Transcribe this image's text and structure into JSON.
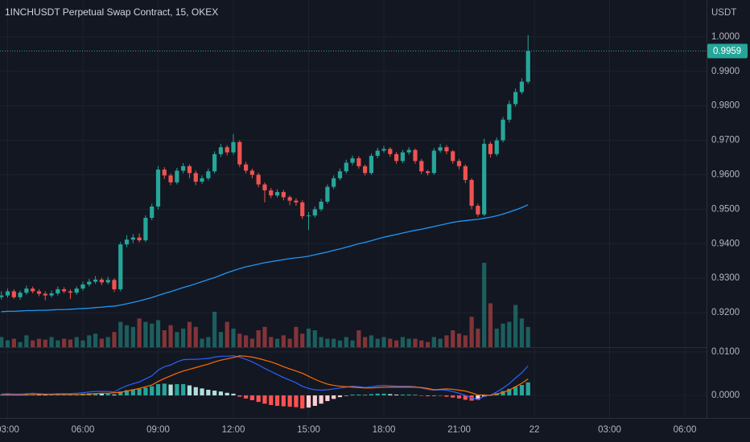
{
  "chart_data": {
    "type": "candlestick",
    "title": "1INCHUSDT Perpetual Swap Contract, 15, OKEX",
    "currency": "USDT",
    "grid": true,
    "up_color": "#26a69a",
    "down_color": "#ef5350",
    "xlim": [
      2.695,
      30.866
    ],
    "xticks": [
      {
        "value": 3,
        "label": "03:00"
      },
      {
        "value": 6,
        "label": "06:00"
      },
      {
        "value": 9,
        "label": "09:00"
      },
      {
        "value": 12,
        "label": "12:00"
      },
      {
        "value": 15,
        "label": "15:00"
      },
      {
        "value": 18,
        "label": "18:00"
      },
      {
        "value": 21,
        "label": "21:00"
      },
      {
        "value": 24,
        "label": "22"
      },
      {
        "value": 27,
        "label": "03:00"
      },
      {
        "value": 30,
        "label": "06:00"
      }
    ],
    "ylim": [
      0.91,
      1.0107
    ],
    "yticks": [
      {
        "value": 1,
        "label": "1.0000"
      },
      {
        "value": 0.99,
        "label": "0.9900"
      },
      {
        "value": 0.98,
        "label": "0.9800"
      },
      {
        "value": 0.97,
        "label": "0.9700"
      },
      {
        "value": 0.96,
        "label": "0.9600"
      },
      {
        "value": 0.95,
        "label": "0.9500"
      },
      {
        "value": 0.94,
        "label": "0.9400"
      },
      {
        "value": 0.93,
        "label": "0.9300"
      },
      {
        "value": 0.92,
        "label": "0.9200"
      }
    ],
    "x": [
      2.75,
      3,
      3.25,
      3.5,
      3.75,
      4,
      4.25,
      4.5,
      4.75,
      5,
      5.25,
      5.5,
      5.75,
      6,
      6.25,
      6.5,
      6.75,
      7,
      7.25,
      7.5,
      7.75,
      8,
      8.25,
      8.5,
      8.75,
      9,
      9.25,
      9.5,
      9.75,
      10,
      10.25,
      10.5,
      10.75,
      11,
      11.25,
      11.5,
      11.75,
      12,
      12.25,
      12.5,
      12.75,
      13,
      13.25,
      13.5,
      13.75,
      14,
      14.25,
      14.5,
      14.75,
      15,
      15.25,
      15.5,
      15.75,
      16,
      16.25,
      16.5,
      16.75,
      17,
      17.25,
      17.5,
      17.75,
      18,
      18.25,
      18.5,
      18.75,
      19,
      19.25,
      19.5,
      19.75,
      20,
      20.25,
      20.5,
      20.75,
      21,
      21.25,
      21.5,
      21.75,
      22,
      22.25,
      22.5,
      22.75,
      23,
      23.25,
      23.5,
      23.75
    ],
    "ohlc": [
      [
        0.9245,
        0.9262,
        0.9238,
        0.925
      ],
      [
        0.925,
        0.927,
        0.9244,
        0.9262
      ],
      [
        0.9262,
        0.9268,
        0.924,
        0.9245
      ],
      [
        0.9245,
        0.9264,
        0.9238,
        0.9258
      ],
      [
        0.9258,
        0.9278,
        0.9252,
        0.927
      ],
      [
        0.927,
        0.9276,
        0.9256,
        0.9262
      ],
      [
        0.9262,
        0.9268,
        0.9248,
        0.9255
      ],
      [
        0.9255,
        0.9262,
        0.9236,
        0.925
      ],
      [
        0.925,
        0.9264,
        0.9244,
        0.9256
      ],
      [
        0.9256,
        0.9276,
        0.925,
        0.9268
      ],
      [
        0.9268,
        0.9274,
        0.9256,
        0.9262
      ],
      [
        0.9262,
        0.9268,
        0.924,
        0.9258
      ],
      [
        0.9258,
        0.9276,
        0.9252,
        0.927
      ],
      [
        0.927,
        0.929,
        0.9264,
        0.9282
      ],
      [
        0.9282,
        0.9298,
        0.9276,
        0.929
      ],
      [
        0.929,
        0.9306,
        0.9284,
        0.9296
      ],
      [
        0.9296,
        0.9302,
        0.928,
        0.9288
      ],
      [
        0.9288,
        0.9304,
        0.9282,
        0.9295
      ],
      [
        0.9295,
        0.93,
        0.926,
        0.9268
      ],
      [
        0.9268,
        0.9405,
        0.9262,
        0.9398
      ],
      [
        0.9398,
        0.9425,
        0.939,
        0.9412
      ],
      [
        0.9412,
        0.9428,
        0.9402,
        0.9418
      ],
      [
        0.9418,
        0.943,
        0.9404,
        0.941
      ],
      [
        0.941,
        0.9482,
        0.9405,
        0.9475
      ],
      [
        0.9475,
        0.9516,
        0.9468,
        0.9508
      ],
      [
        0.9508,
        0.9625,
        0.95,
        0.9615
      ],
      [
        0.9615,
        0.9622,
        0.9588,
        0.9598
      ],
      [
        0.9598,
        0.9604,
        0.957,
        0.9578
      ],
      [
        0.9578,
        0.962,
        0.9572,
        0.9612
      ],
      [
        0.9612,
        0.9634,
        0.9604,
        0.9625
      ],
      [
        0.9625,
        0.963,
        0.959,
        0.9605
      ],
      [
        0.9605,
        0.9612,
        0.957,
        0.958
      ],
      [
        0.958,
        0.9598,
        0.9574,
        0.959
      ],
      [
        0.959,
        0.9618,
        0.9584,
        0.961
      ],
      [
        0.961,
        0.9668,
        0.9604,
        0.966
      ],
      [
        0.966,
        0.969,
        0.9652,
        0.968
      ],
      [
        0.968,
        0.9686,
        0.9656,
        0.9665
      ],
      [
        0.9665,
        0.9718,
        0.9658,
        0.9695
      ],
      [
        0.9695,
        0.97,
        0.9622,
        0.963
      ],
      [
        0.963,
        0.9638,
        0.9604,
        0.9612
      ],
      [
        0.9612,
        0.9618,
        0.959,
        0.96
      ],
      [
        0.96,
        0.9606,
        0.9564,
        0.9572
      ],
      [
        0.9572,
        0.9578,
        0.952,
        0.9555
      ],
      [
        0.9555,
        0.9562,
        0.9532,
        0.954
      ],
      [
        0.954,
        0.9558,
        0.9534,
        0.955
      ],
      [
        0.955,
        0.9556,
        0.9526,
        0.9535
      ],
      [
        0.9535,
        0.954,
        0.9512,
        0.9525
      ],
      [
        0.9525,
        0.9532,
        0.951,
        0.952
      ],
      [
        0.952,
        0.9526,
        0.9472,
        0.948
      ],
      [
        0.948,
        0.9492,
        0.944,
        0.9482
      ],
      [
        0.9482,
        0.9508,
        0.9476,
        0.95
      ],
      [
        0.95,
        0.953,
        0.9494,
        0.9522
      ],
      [
        0.9522,
        0.9572,
        0.9516,
        0.9565
      ],
      [
        0.9565,
        0.9598,
        0.9558,
        0.959
      ],
      [
        0.959,
        0.9618,
        0.9584,
        0.961
      ],
      [
        0.961,
        0.9644,
        0.9604,
        0.9635
      ],
      [
        0.9635,
        0.9656,
        0.9628,
        0.9648
      ],
      [
        0.9648,
        0.9654,
        0.9618,
        0.9625
      ],
      [
        0.9625,
        0.963,
        0.9598,
        0.9605
      ],
      [
        0.9605,
        0.9662,
        0.96,
        0.9655
      ],
      [
        0.9655,
        0.9678,
        0.9648,
        0.967
      ],
      [
        0.967,
        0.9684,
        0.9664,
        0.9675
      ],
      [
        0.9675,
        0.968,
        0.9652,
        0.966
      ],
      [
        0.966,
        0.9666,
        0.9632,
        0.964
      ],
      [
        0.964,
        0.9672,
        0.9634,
        0.9665
      ],
      [
        0.9665,
        0.968,
        0.9658,
        0.9672
      ],
      [
        0.9672,
        0.9676,
        0.9632,
        0.964
      ],
      [
        0.964,
        0.9646,
        0.9602,
        0.961
      ],
      [
        0.961,
        0.9614,
        0.9598,
        0.9605
      ],
      [
        0.9605,
        0.9678,
        0.96,
        0.967
      ],
      [
        0.967,
        0.969,
        0.9664,
        0.968
      ],
      [
        0.968,
        0.9686,
        0.966,
        0.9668
      ],
      [
        0.9668,
        0.9672,
        0.9632,
        0.964
      ],
      [
        0.964,
        0.9646,
        0.9616,
        0.9625
      ],
      [
        0.9625,
        0.963,
        0.9576,
        0.9585
      ],
      [
        0.9585,
        0.959,
        0.95,
        0.951
      ],
      [
        0.951,
        0.9516,
        0.9478,
        0.9485
      ],
      [
        0.9485,
        0.9705,
        0.948,
        0.969
      ],
      [
        0.969,
        0.9696,
        0.965,
        0.966
      ],
      [
        0.966,
        0.9708,
        0.9654,
        0.97
      ],
      [
        0.97,
        0.9768,
        0.9694,
        0.976
      ],
      [
        0.976,
        0.9815,
        0.9752,
        0.9805
      ],
      [
        0.9805,
        0.985,
        0.9798,
        0.984
      ],
      [
        0.984,
        0.988,
        0.9834,
        0.987
      ],
      [
        0.987,
        1.0005,
        0.9864,
        0.9959
      ]
    ],
    "ma": {
      "color": "#2196f3",
      "values": [
        0.9203,
        0.9204,
        0.9204,
        0.9205,
        0.9206,
        0.9206,
        0.9207,
        0.9207,
        0.9208,
        0.9209,
        0.9209,
        0.921,
        0.9211,
        0.9212,
        0.9213,
        0.9215,
        0.9216,
        0.9218,
        0.9219,
        0.9222,
        0.9226,
        0.923,
        0.9234,
        0.9239,
        0.9244,
        0.925,
        0.9256,
        0.9261,
        0.9267,
        0.9273,
        0.9278,
        0.9284,
        0.929,
        0.9296,
        0.9302,
        0.9309,
        0.9316,
        0.9322,
        0.9328,
        0.9333,
        0.9337,
        0.9341,
        0.9345,
        0.9348,
        0.9351,
        0.9354,
        0.9357,
        0.9359,
        0.9361,
        0.9364,
        0.9368,
        0.9372,
        0.9376,
        0.9381,
        0.9385,
        0.939,
        0.9395,
        0.94,
        0.9404,
        0.9409,
        0.9414,
        0.9419,
        0.9423,
        0.9427,
        0.9431,
        0.9435,
        0.9439,
        0.9442,
        0.9446,
        0.945,
        0.9454,
        0.9458,
        0.9462,
        0.9465,
        0.9467,
        0.9469,
        0.9471,
        0.9474,
        0.9477,
        0.9481,
        0.9486,
        0.9492,
        0.9498,
        0.9505,
        0.9513
      ]
    },
    "volume": {
      "lim": [
        0,
        100
      ],
      "values": [
        12,
        8,
        10,
        6,
        14,
        8,
        10,
        9,
        12,
        8,
        10,
        9,
        12,
        8,
        14,
        16,
        10,
        12,
        18,
        30,
        26,
        24,
        34,
        30,
        28,
        32,
        20,
        26,
        18,
        22,
        30,
        24,
        10,
        12,
        42,
        18,
        30,
        22,
        16,
        14,
        10,
        20,
        24,
        12,
        10,
        14,
        10,
        24,
        16,
        22,
        20,
        12,
        10,
        10,
        8,
        12,
        8,
        20,
        12,
        14,
        10,
        12,
        10,
        8,
        12,
        10,
        10,
        8,
        6,
        12,
        10,
        14,
        20,
        16,
        14,
        36,
        22,
        100,
        52,
        22,
        28,
        30,
        50,
        34,
        24
      ]
    },
    "macd_pane": {
      "ylim": [
        -0.0048,
        0.0122
      ],
      "yticks": [
        {
          "value": 0.01,
          "label": "0.0100"
        },
        {
          "value": 0,
          "label": "0.0000"
        }
      ],
      "macd": {
        "color": "#2962ff",
        "values": [
          0.0003,
          0.0004,
          0.0003,
          0.0003,
          0.0004,
          0.0005,
          0.0004,
          0.0003,
          0.0003,
          0.0004,
          0.0004,
          0.0004,
          0.0005,
          0.0006,
          0.0008,
          0.0009,
          0.0009,
          0.0009,
          0.0008,
          0.0016,
          0.0022,
          0.0027,
          0.0031,
          0.0038,
          0.0045,
          0.0058,
          0.0066,
          0.007,
          0.0077,
          0.0082,
          0.0083,
          0.0083,
          0.0084,
          0.0085,
          0.0088,
          0.009,
          0.009,
          0.0091,
          0.0088,
          0.0083,
          0.0077,
          0.007,
          0.0062,
          0.0055,
          0.0048,
          0.0041,
          0.0035,
          0.0029,
          0.0021,
          0.0016,
          0.0013,
          0.0012,
          0.0013,
          0.0015,
          0.0017,
          0.0019,
          0.0021,
          0.002,
          0.0018,
          0.002,
          0.0022,
          0.0023,
          0.0022,
          0.0021,
          0.0021,
          0.0021,
          0.002,
          0.0017,
          0.0014,
          0.0012,
          0.0013,
          0.0012,
          0.0009,
          0.0005,
          0,
          -0.0006,
          -0.0009,
          -0.0002,
          0.0001,
          0.0008,
          0.0017,
          0.0027,
          0.004,
          0.0052,
          0.0068
        ]
      },
      "signal": {
        "color": "#ff6d00",
        "values": [
          0.0001,
          0.0001,
          0.0001,
          0.0001,
          0.0001,
          0.0002,
          0.0002,
          0.0002,
          0.0002,
          0.0002,
          0.0002,
          0.0002,
          0.0002,
          0.0002,
          0.0003,
          0.0004,
          0.0005,
          0.0005,
          0.0006,
          0.0007,
          0.001,
          0.0013,
          0.0016,
          0.002,
          0.0024,
          0.0032,
          0.0039,
          0.0045,
          0.0051,
          0.0056,
          0.006,
          0.0064,
          0.0068,
          0.0072,
          0.0077,
          0.0081,
          0.0084,
          0.0087,
          0.0091,
          0.009,
          0.0088,
          0.0085,
          0.0081,
          0.0077,
          0.0072,
          0.0066,
          0.0061,
          0.0056,
          0.0051,
          0.0044,
          0.0037,
          0.0031,
          0.0026,
          0.0023,
          0.0021,
          0.002,
          0.0019,
          0.0018,
          0.0017,
          0.0017,
          0.0018,
          0.0019,
          0.0019,
          0.0019,
          0.0019,
          0.0019,
          0.0019,
          0.0018,
          0.0016,
          0.0013,
          0.0014,
          0.0015,
          0.0014,
          0.0012,
          0.001,
          0.0006,
          0.0001,
          0.0001,
          0,
          0.0003,
          0.0007,
          0.0012,
          0.002,
          0.0028,
          0.0038
        ]
      },
      "histogram": {
        "colors": [
          "#26a69a",
          "#b2dfdb",
          "#ff5252",
          "#ffcdd2"
        ],
        "values": [
          0.0002,
          0.0003,
          0.0002,
          0.0002,
          0.0003,
          0.0003,
          0.0002,
          0.0001,
          0.0001,
          0.0002,
          0.0002,
          0.0002,
          0.0003,
          0.0004,
          0.0005,
          0.0005,
          0.0004,
          0.0004,
          0.0002,
          0.0009,
          0.0012,
          0.0014,
          0.0015,
          0.0018,
          0.0021,
          0.0026,
          0.0027,
          0.0025,
          0.0026,
          0.0026,
          0.0023,
          0.0019,
          0.0016,
          0.0013,
          0.0011,
          0.0009,
          0.0006,
          0.0004,
          -0.0003,
          -0.0007,
          -0.0011,
          -0.0015,
          -0.0019,
          -0.0022,
          -0.0024,
          -0.0025,
          -0.0026,
          -0.0027,
          -0.003,
          -0.0028,
          -0.0024,
          -0.0019,
          -0.0013,
          -0.0008,
          -0.0004,
          -0.0001,
          0.0002,
          0.0002,
          0.0001,
          0.0003,
          0.0004,
          0.0004,
          0.0003,
          0.0002,
          0.0002,
          0.0002,
          0.0001,
          -0.0001,
          -0.0002,
          -0.0001,
          -0.0001,
          -0.0003,
          -0.0005,
          -0.0007,
          -0.001,
          -0.0012,
          -0.001,
          -0.0003,
          0.0001,
          0.0005,
          0.001,
          0.0015,
          0.002,
          0.0024,
          0.003
        ]
      }
    }
  }
}
